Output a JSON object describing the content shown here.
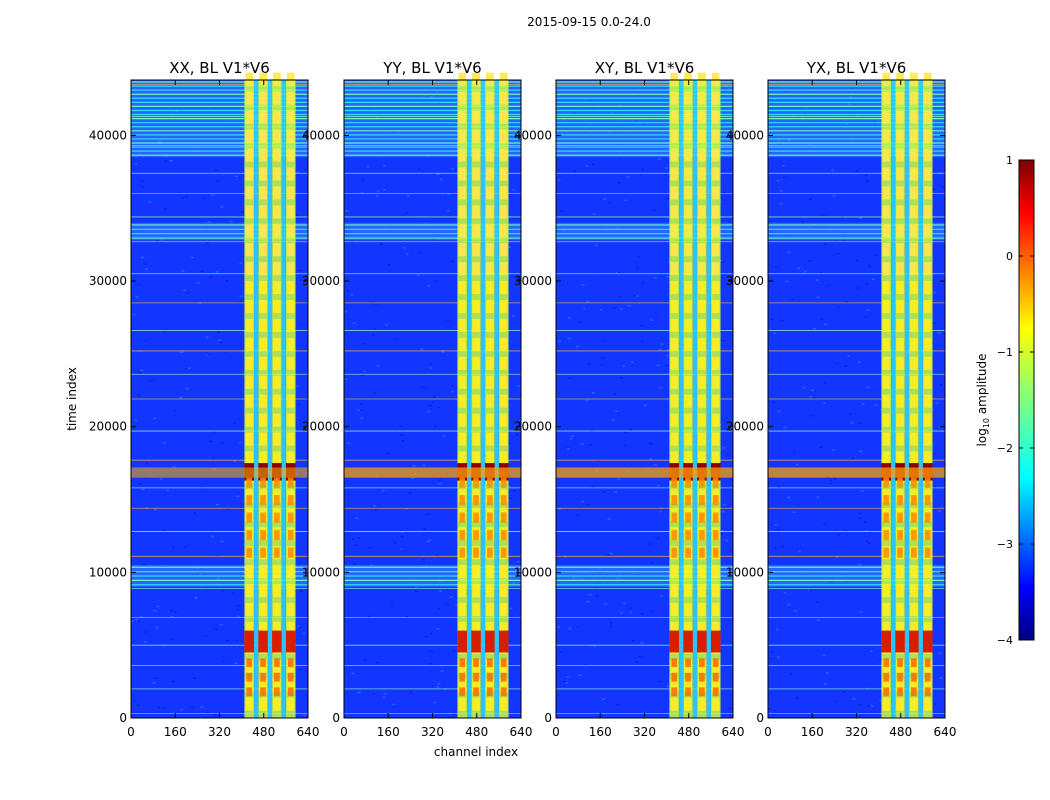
{
  "chart_data": {
    "type": "heatmap",
    "suptitle": "2015-09-15 0.0-24.0",
    "xlabel": "channel index",
    "ylabel": "time index",
    "xlim": [
      0,
      640
    ],
    "ylim": [
      0,
      43800
    ],
    "xticks": [
      0,
      160,
      320,
      480,
      640
    ],
    "yticks": [
      0,
      10000,
      20000,
      30000,
      40000
    ],
    "panels": [
      {
        "title": "XX, BL V1*V6",
        "show_ylabel": true
      },
      {
        "title": "YY, BL V1*V6",
        "show_ylabel": false
      },
      {
        "title": "XY, BL V1*V6",
        "show_ylabel": false
      },
      {
        "title": "YX, BL V1*V6",
        "show_ylabel": false
      }
    ],
    "active_channel_range": [
      410,
      600
    ],
    "active_channel_columns": [
      [
        410,
        445
      ],
      [
        460,
        495
      ],
      [
        510,
        545
      ],
      [
        560,
        595
      ]
    ],
    "strong_signal_time_ranges": [
      [
        16300,
        17500
      ],
      [
        4500,
        6000
      ]
    ],
    "flagged_time_bands": [
      [
        38500,
        43800
      ],
      [
        32800,
        34000
      ],
      [
        9000,
        10500
      ]
    ],
    "colorbar": {
      "label": "log10 amplitude",
      "label_html_sub": "10",
      "ticks": [
        1,
        0,
        -1,
        -2,
        -3,
        -4
      ],
      "tick_labels": [
        "1",
        "0",
        "−1",
        "−2",
        "−3",
        "−4"
      ],
      "vmin": -4,
      "vmax": 1,
      "colormap": "jet",
      "colors": [
        "#00007f",
        "#0000ff",
        "#007fff",
        "#00ffff",
        "#7fff7f",
        "#ffff00",
        "#ff7f00",
        "#ff0000",
        "#7f0000"
      ]
    }
  }
}
